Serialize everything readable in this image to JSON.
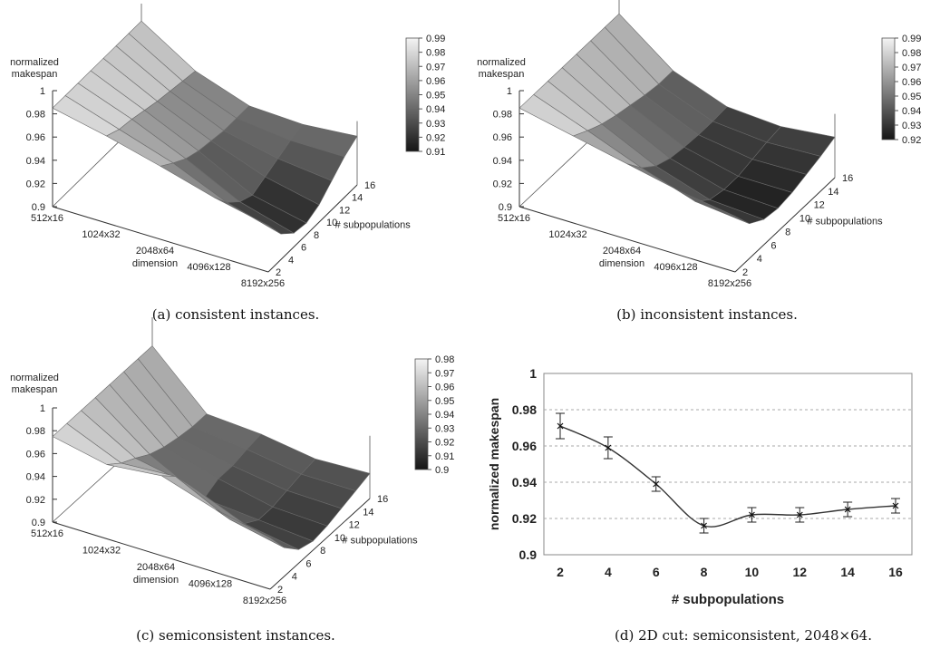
{
  "panels": [
    {
      "caption": "(a) consistent instances.",
      "zlabel": [
        "normalized",
        "makespan"
      ],
      "zticks": [
        "1",
        "0.98",
        "0.96",
        "0.94",
        "0.92",
        "0.9"
      ],
      "xticks": [
        "512x16",
        "1024x32",
        "2048x64",
        "4096x128",
        "8192x256"
      ],
      "xlabel": "dimension",
      "yticks": [
        "2",
        "4",
        "6",
        "8",
        "10",
        "12",
        "14",
        "16"
      ],
      "ylabel": "# subpopulations",
      "colorbar": [
        "0.99",
        "0.98",
        "0.97",
        "0.96",
        "0.95",
        "0.94",
        "0.93",
        "0.92",
        "0.91"
      ]
    },
    {
      "caption": "(b) inconsistent instances.",
      "zlabel": [
        "normalized",
        "makespan"
      ],
      "zticks": [
        "1",
        "0.98",
        "0.96",
        "0.94",
        "0.92",
        "0.9"
      ],
      "xticks": [
        "512x16",
        "1024x32",
        "2048x64",
        "4096x128",
        "8192x256"
      ],
      "xlabel": "dimension",
      "yticks": [
        "2",
        "4",
        "6",
        "8",
        "10",
        "12",
        "14",
        "16"
      ],
      "ylabel": "# subpopulations",
      "colorbar": [
        "0.99",
        "0.98",
        "0.97",
        "0.96",
        "0.95",
        "0.94",
        "0.93",
        "0.92"
      ]
    },
    {
      "caption": "(c) semiconsistent instances.",
      "zlabel": [
        "normalized",
        "makespan"
      ],
      "zticks": [
        "1",
        "0.98",
        "0.96",
        "0.94",
        "0.92",
        "0.9"
      ],
      "xticks": [
        "512x16",
        "1024x32",
        "2048x64",
        "4096x128",
        "8192x256"
      ],
      "xlabel": "dimension",
      "yticks": [
        "2",
        "4",
        "6",
        "8",
        "10",
        "12",
        "14",
        "16"
      ],
      "ylabel": "# subpopulations",
      "colorbar": [
        "0.98",
        "0.97",
        "0.96",
        "0.95",
        "0.94",
        "0.93",
        "0.92",
        "0.91",
        "0.9"
      ]
    }
  ],
  "line_panel": {
    "caption": "(d) 2D cut: semiconsistent, 2048×64.",
    "xlabel": "# subpopulations",
    "ylabel": "normalized makespan"
  },
  "chart_data": [
    {
      "type": "heatmap",
      "note_type": "3d-surface",
      "x": [
        "512x16",
        "1024x32",
        "2048x64",
        "4096x128",
        "8192x256"
      ],
      "y": [
        2,
        4,
        6,
        8,
        10,
        12,
        14,
        16
      ],
      "zlim": [
        0.9,
        1
      ],
      "z": [
        [
          0.985,
          0.985,
          0.985,
          0.985,
          0.985,
          0.985,
          0.985,
          0.985
        ],
        [
          0.975,
          0.97,
          0.968,
          0.965,
          0.962,
          0.96,
          0.958,
          0.956
        ],
        [
          0.963,
          0.955,
          0.948,
          0.944,
          0.942,
          0.94,
          0.94,
          0.94
        ],
        [
          0.95,
          0.935,
          0.925,
          0.92,
          0.925,
          0.93,
          0.935,
          0.938
        ],
        [
          0.94,
          0.922,
          0.912,
          0.91,
          0.915,
          0.925,
          0.935,
          0.942
        ]
      ]
    },
    {
      "type": "heatmap",
      "note_type": "3d-surface",
      "x": [
        "512x16",
        "1024x32",
        "2048x64",
        "4096x128",
        "8192x256"
      ],
      "y": [
        2,
        4,
        6,
        8,
        10,
        12,
        14,
        16
      ],
      "zlim": [
        0.9,
        1
      ],
      "z": [
        [
          0.985,
          0.985,
          0.985,
          0.985,
          0.985,
          0.985,
          0.985,
          0.985
        ],
        [
          0.975,
          0.968,
          0.962,
          0.958,
          0.955,
          0.952,
          0.95,
          0.95
        ],
        [
          0.965,
          0.95,
          0.94,
          0.935,
          0.933,
          0.932,
          0.932,
          0.933
        ],
        [
          0.955,
          0.935,
          0.925,
          0.922,
          0.922,
          0.925,
          0.928,
          0.93
        ],
        [
          0.948,
          0.93,
          0.922,
          0.92,
          0.922,
          0.926,
          0.93,
          0.935
        ]
      ]
    },
    {
      "type": "heatmap",
      "note_type": "3d-surface",
      "x": [
        "512x16",
        "1024x32",
        "2048x64",
        "4096x128",
        "8192x256"
      ],
      "y": [
        2,
        4,
        6,
        8,
        10,
        12,
        14,
        16
      ],
      "zlim": [
        0.9,
        1
      ],
      "z": [
        [
          0.975,
          0.975,
          0.975,
          0.975,
          0.975,
          0.975,
          0.975,
          0.975
        ],
        [
          0.965,
          0.955,
          0.948,
          0.94,
          0.935,
          0.932,
          0.93,
          0.93
        ],
        [
          0.97,
          0.958,
          0.939,
          0.916,
          0.922,
          0.922,
          0.925,
          0.927
        ],
        [
          0.955,
          0.935,
          0.92,
          0.912,
          0.912,
          0.915,
          0.918,
          0.92
        ],
        [
          0.945,
          0.925,
          0.912,
          0.908,
          0.91,
          0.914,
          0.918,
          0.922
        ]
      ]
    },
    {
      "type": "line",
      "x": [
        2,
        4,
        6,
        8,
        10,
        12,
        14,
        16
      ],
      "values": [
        0.971,
        0.959,
        0.939,
        0.916,
        0.922,
        0.922,
        0.925,
        0.927
      ],
      "errors": [
        0.007,
        0.006,
        0.004,
        0.004,
        0.004,
        0.004,
        0.004,
        0.004
      ],
      "xticks": [
        "2",
        "4",
        "6",
        "8",
        "10",
        "12",
        "14",
        "16"
      ],
      "yticks": [
        "1",
        "0.98",
        "0.96",
        "0.94",
        "0.92",
        "0.9"
      ],
      "ylim": [
        0.9,
        1
      ],
      "xlabel": "# subpopulations",
      "ylabel": "normalized makespan",
      "grid": true
    }
  ]
}
